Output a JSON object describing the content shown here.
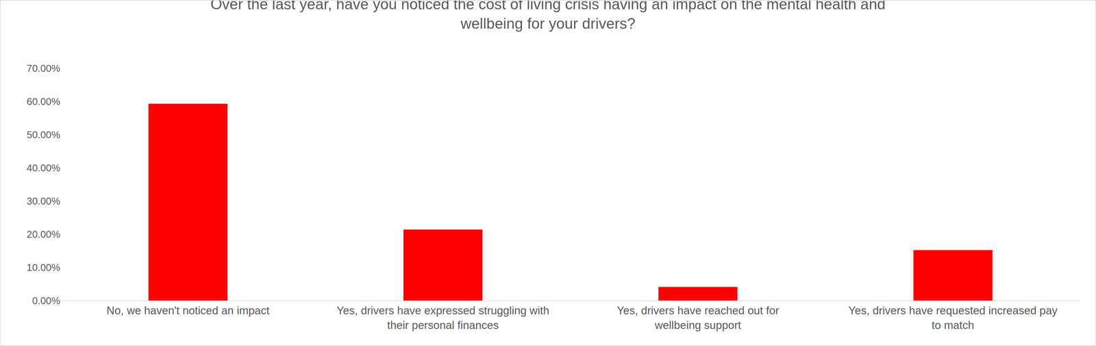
{
  "chart_data": {
    "type": "bar",
    "title": "Over the last year, have you noticed the cost of living crisis having an impact on the mental health and\nwellbeing for your drivers?",
    "categories": [
      "No, we haven't noticed an impact",
      "Yes, drivers have expressed struggling with\ntheir personal finances",
      "Yes, drivers have reached out for\nwellbeing support",
      "Yes, drivers have requested increased pay\nto match"
    ],
    "values": [
      59.3,
      21.4,
      4.1,
      15.2
    ],
    "color": "#ff0000",
    "ylim": [
      0,
      70
    ],
    "yticks": [
      {
        "value": 0,
        "label": "0.00%"
      },
      {
        "value": 10,
        "label": "10.00%"
      },
      {
        "value": 20,
        "label": "20.00%"
      },
      {
        "value": 30,
        "label": "30.00%"
      },
      {
        "value": 40,
        "label": "40.00%"
      },
      {
        "value": 50,
        "label": "50.00%"
      },
      {
        "value": 60,
        "label": "60.00%"
      },
      {
        "value": 70,
        "label": "70.00%"
      }
    ],
    "grid": false
  }
}
